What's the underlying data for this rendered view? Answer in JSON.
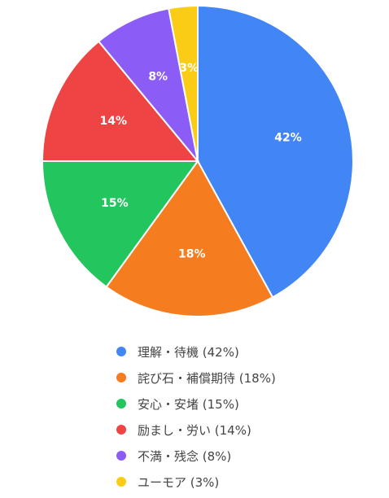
{
  "chart_data": {
    "type": "pie",
    "title": "",
    "start_angle": "top",
    "direction": "clockwise",
    "legend_position": "bottom",
    "slices": [
      {
        "name": "理解・待機",
        "value": 42,
        "label": "42%",
        "legend": "理解・待機 (42%)",
        "color": "#4285f4"
      },
      {
        "name": "詫び石・補償期待",
        "value": 18,
        "label": "18%",
        "legend": "詫び石・補償期待 (18%)",
        "color": "#f57c1f"
      },
      {
        "name": "安心・安堵",
        "value": 15,
        "label": "15%",
        "legend": "安心・安堵 (15%)",
        "color": "#22c55e"
      },
      {
        "name": "励まし・労い",
        "value": 14,
        "label": "14%",
        "legend": "励まし・労い (14%)",
        "color": "#ef4444"
      },
      {
        "name": "不満・残念",
        "value": 8,
        "label": "8%",
        "legend": "不満・残念 (8%)",
        "color": "#8b5cf6"
      },
      {
        "name": "ユーモア",
        "value": 3,
        "label": "3%",
        "legend": "ユーモア (3%)",
        "color": "#facc15"
      }
    ]
  }
}
